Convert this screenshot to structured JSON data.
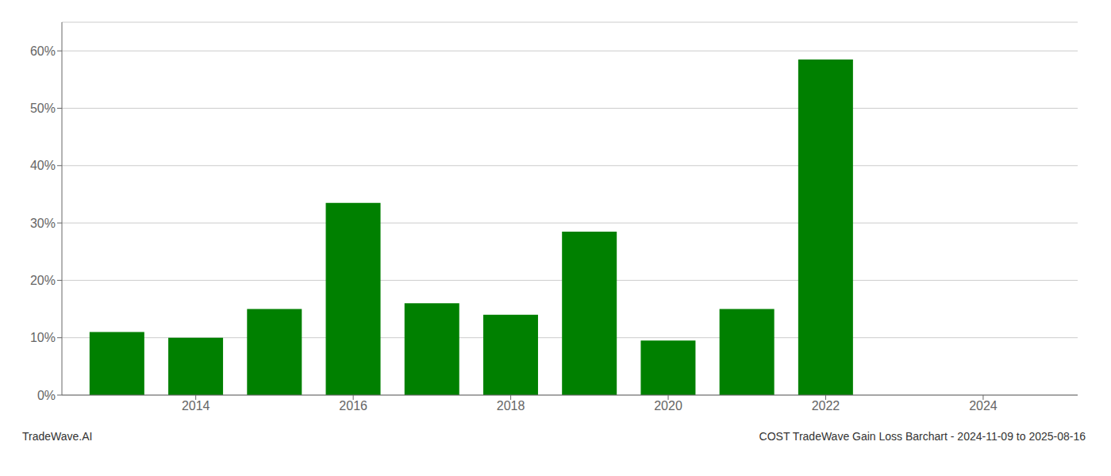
{
  "chart_data": {
    "type": "bar",
    "title": "COST TradeWave Gain Loss Barchart - 2024-11-09 to 2025-08-16",
    "annotations": [
      "TradeWave.AI"
    ],
    "x": [
      2013,
      2014,
      2015,
      2016,
      2017,
      2018,
      2019,
      2020,
      2021,
      2022
    ],
    "values": [
      0.11,
      0.1,
      0.15,
      0.335,
      0.16,
      0.14,
      0.285,
      0.095,
      0.15,
      0.585
    ],
    "color": "#008000",
    "xlim": [
      2012.3,
      2025.2
    ],
    "ylim": [
      0,
      0.65
    ],
    "xticks": [
      2014,
      2016,
      2018,
      2020,
      2022,
      2024
    ],
    "yticks": [
      {
        "value": 0.0,
        "label": "0%"
      },
      {
        "value": 0.1,
        "label": "10%"
      },
      {
        "value": 0.2,
        "label": "20%"
      },
      {
        "value": 0.3,
        "label": "30%"
      },
      {
        "value": 0.4,
        "label": "40%"
      },
      {
        "value": 0.5,
        "label": "50%"
      },
      {
        "value": 0.6,
        "label": "60%"
      }
    ],
    "grid": true
  }
}
